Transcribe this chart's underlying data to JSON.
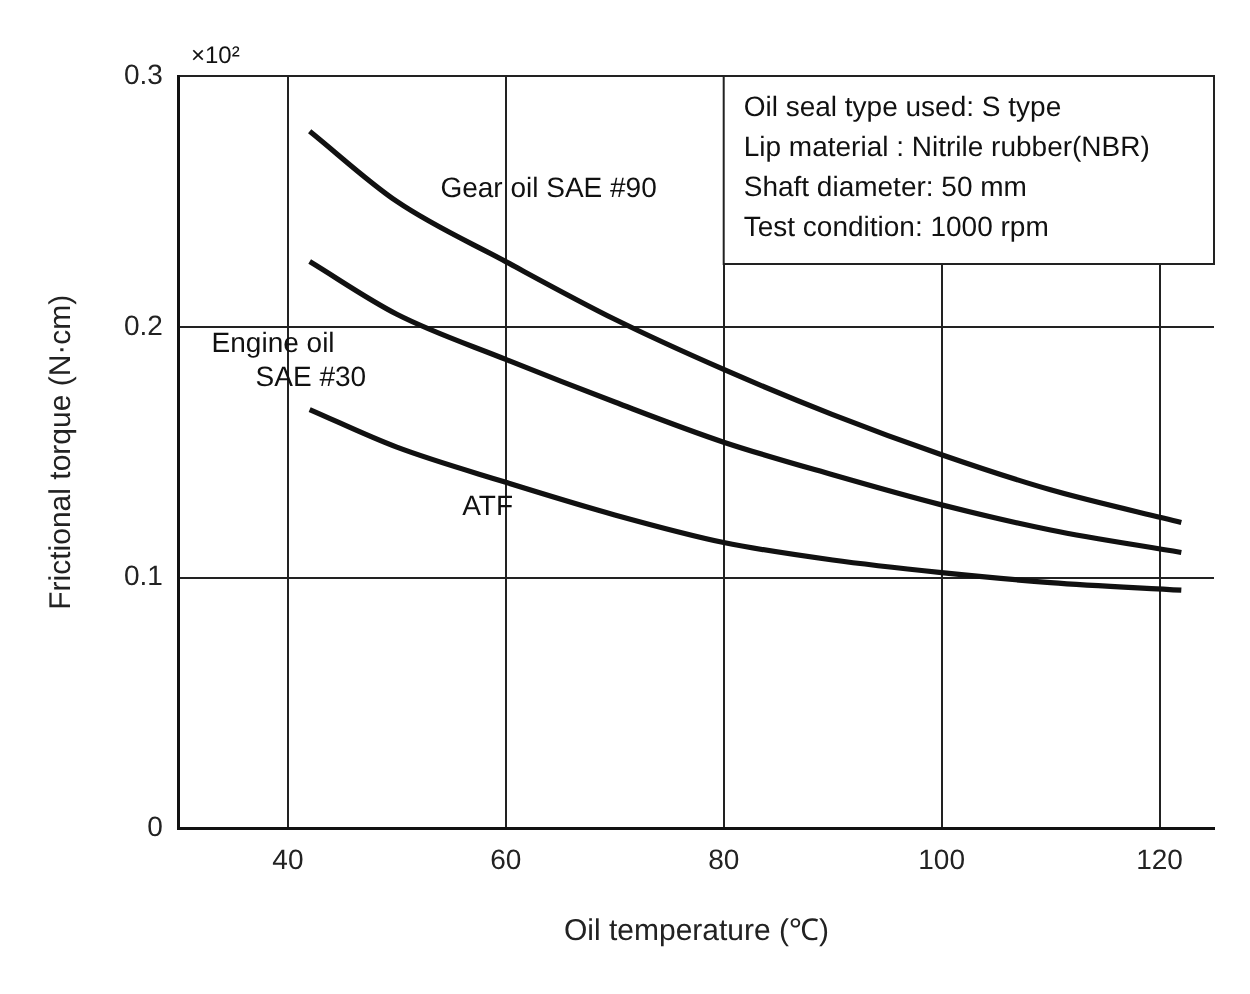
{
  "chart_data": {
    "type": "line",
    "xlabel": "Oil temperature (℃)",
    "ylabel": "Frictional torque (N·cm)",
    "x": [
      42,
      50,
      60,
      70,
      80,
      90,
      100,
      110,
      122
    ],
    "series": [
      {
        "name": "Gear oil SAE #90",
        "color": "#111111",
        "values": [
          0.278,
          0.25,
          0.226,
          0.203,
          0.183,
          0.165,
          0.149,
          0.135,
          0.122
        ]
      },
      {
        "name": "Engine oil SAE #30",
        "color": "#111111",
        "values": [
          0.226,
          0.205,
          0.187,
          0.17,
          0.154,
          0.141,
          0.129,
          0.119,
          0.11
        ]
      },
      {
        "name": "ATF",
        "color": "#111111",
        "values": [
          0.167,
          0.152,
          0.138,
          0.125,
          0.114,
          0.107,
          0.102,
          0.098,
          0.095
        ]
      }
    ],
    "xlim": [
      30,
      125
    ],
    "xticks": [
      40,
      60,
      80,
      100,
      120
    ],
    "ylim": [
      0,
      0.3
    ],
    "yticks": [
      0,
      0.1,
      0.2,
      0.3
    ],
    "grid": true,
    "legend": false,
    "marker": "none",
    "line_style": "solid",
    "annotations": [
      "×10²",
      "Oil seal type used: S type",
      "Lip material : Nitrile rubber(NBR)",
      "Shaft diameter: 50 mm",
      "Test condition: 1000 rpm"
    ]
  }
}
